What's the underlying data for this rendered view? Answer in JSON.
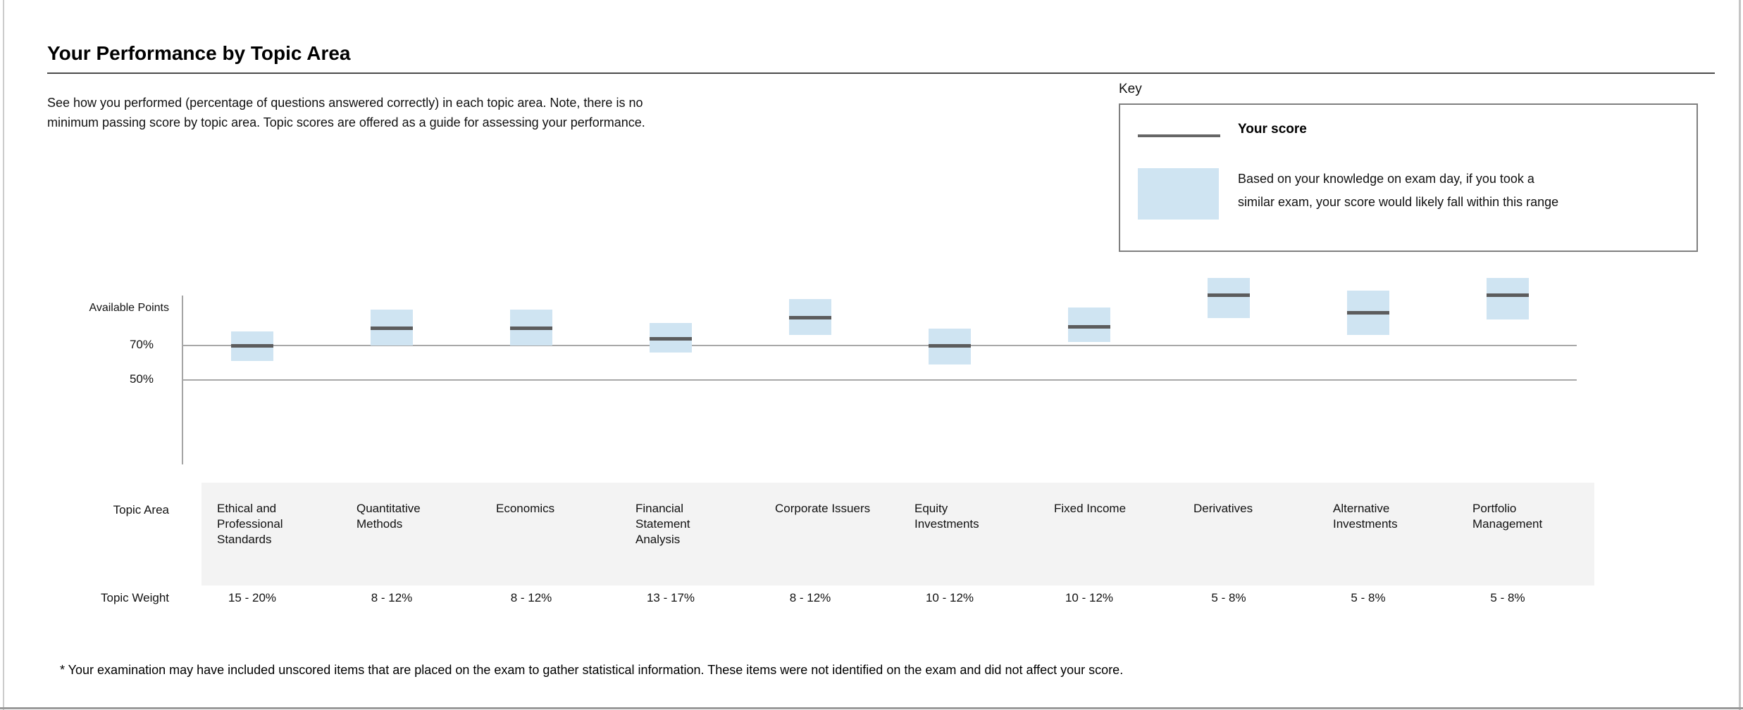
{
  "page": {
    "title": "Your Performance by Topic Area",
    "description": "See how you performed (percentage of questions answered correctly) in each topic area. Note, there is no\nminimum passing score by topic area. Topic scores are offered as a guide for assessing your performance.",
    "footnote": "* Your examination may have included unscored items that are placed on the exam to gather statistical information. These items were not identified on the exam and did not affect your score."
  },
  "key": {
    "heading": "Key",
    "score_line_label": "Your score",
    "range_description": "Based on your knowledge on exam day, if you took a\nsimilar exam, your score would likely fall within this range"
  },
  "table": {
    "topic_area_row_label": "Topic Area",
    "topic_weight_row_label": "Topic Weight"
  },
  "colors": {
    "range_fill": "#cfe4f2",
    "score_line": "#5c5c5d",
    "gridline": "#a8a8a8",
    "band_bg": "#f3f3f3",
    "legend_line": "#666666"
  },
  "chart_data": {
    "type": "bar",
    "subtype": "floating-range-boxes-with-score-marker",
    "axis_title": "Available Points",
    "yticks": [
      {
        "label": "70%",
        "value": 70
      },
      {
        "label": "50%",
        "value": 50
      }
    ],
    "legend": [
      "Your score",
      "Likely score range"
    ],
    "values_estimated_from_pixels": true,
    "categories": [
      "Ethical and Professional Standards",
      "Quantitative Methods",
      "Economics",
      "Financial Statement Analysis",
      "Corporate Issuers",
      "Equity Investments",
      "Fixed Income",
      "Derivatives",
      "Alternative Investments",
      "Portfolio Management"
    ],
    "series": [
      {
        "name": "Your score (%)",
        "values": [
          70,
          80,
          80,
          74,
          86,
          70,
          81,
          99,
          89,
          99
        ]
      },
      {
        "name": "Range low (%)",
        "values": [
          61,
          70,
          70,
          66,
          76,
          59,
          72,
          86,
          76,
          85
        ]
      },
      {
        "name": "Range high (%)",
        "values": [
          78,
          91,
          91,
          83,
          97,
          80,
          92,
          109,
          102,
          109
        ]
      }
    ],
    "topics": [
      {
        "display_name": "Ethical and\nProfessional\nStandards",
        "weight": "15 - 20%",
        "score": 70,
        "low": 61,
        "high": 78
      },
      {
        "display_name": "Quantitative\nMethods",
        "weight": "8 - 12%",
        "score": 80,
        "low": 70,
        "high": 91
      },
      {
        "display_name": "Economics",
        "weight": "8 - 12%",
        "score": 80,
        "low": 70,
        "high": 91
      },
      {
        "display_name": "Financial\nStatement\nAnalysis",
        "weight": "13 - 17%",
        "score": 74,
        "low": 66,
        "high": 83
      },
      {
        "display_name": "Corporate Issuers",
        "weight": "8 - 12%",
        "score": 86,
        "low": 76,
        "high": 97
      },
      {
        "display_name": "Equity\nInvestments",
        "weight": "10 - 12%",
        "score": 70,
        "low": 59,
        "high": 80
      },
      {
        "display_name": "Fixed Income",
        "weight": "10 - 12%",
        "score": 81,
        "low": 72,
        "high": 92
      },
      {
        "display_name": "Derivatives",
        "weight": "5 - 8%",
        "score": 99,
        "low": 86,
        "high": 109
      },
      {
        "display_name": "Alternative\nInvestments",
        "weight": "5 - 8%",
        "score": 89,
        "low": 76,
        "high": 102
      },
      {
        "display_name": "Portfolio\nManagement",
        "weight": "5 - 8%",
        "score": 99,
        "low": 85,
        "high": 109
      }
    ]
  }
}
